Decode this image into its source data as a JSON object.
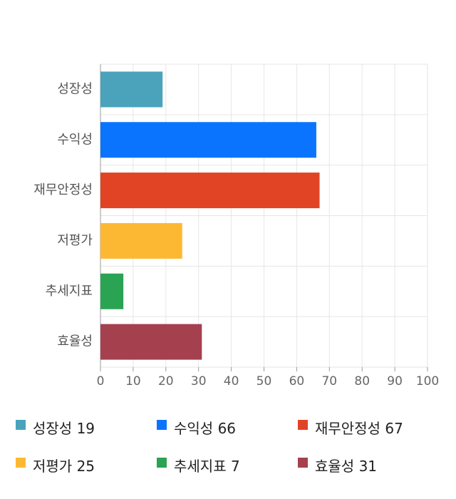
{
  "chart_data": {
    "type": "bar",
    "orientation": "horizontal",
    "categories": [
      "성장성",
      "수익성",
      "재무안정성",
      "저평가",
      "추세지표",
      "효율성"
    ],
    "values": [
      19,
      66,
      67,
      25,
      7,
      31
    ],
    "colors": [
      "#4ba3bb",
      "#0a74ff",
      "#e04424",
      "#fdb833",
      "#2aa353",
      "#a5404f"
    ],
    "xlim": [
      0,
      100
    ],
    "xticks": [
      0,
      10,
      20,
      30,
      40,
      50,
      60,
      70,
      80,
      90,
      100
    ],
    "grid": true,
    "legend": "bottom"
  }
}
